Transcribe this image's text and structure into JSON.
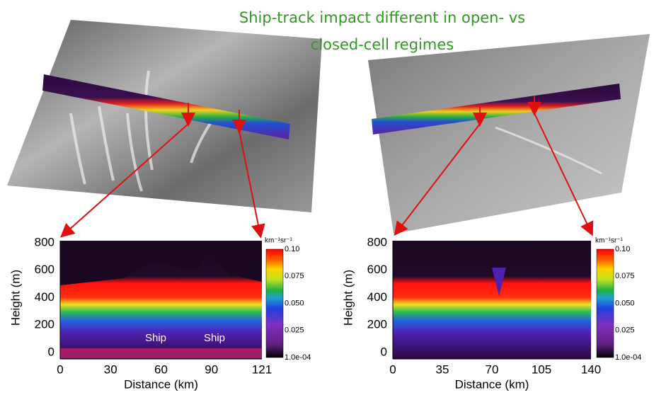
{
  "title": "Ship-track impact different in open- vs closed-cell regimes",
  "panels": [
    {
      "y_label": "Height (m)",
      "x_label": "Distance (km)",
      "yticks": [
        "0",
        "200",
        "400",
        "600",
        "800"
      ],
      "xticks": [
        "0",
        "30",
        "60",
        "90",
        "121"
      ],
      "colorbar": {
        "unit": "km⁻¹sr⁻¹",
        "ticks": [
          "1.0e-04",
          "0.025",
          "0.050",
          "0.075",
          "0.10"
        ]
      },
      "annotations": [
        "Ship",
        "Ship"
      ]
    },
    {
      "y_label": "Height (m)",
      "x_label": "Distance (km)",
      "yticks": [
        "0",
        "200",
        "400",
        "600",
        "800"
      ],
      "xticks": [
        "0",
        "35",
        "70",
        "105",
        "140"
      ],
      "colorbar": {
        "unit": "km⁻¹sr⁻¹",
        "ticks": [
          "1.0e-04",
          "0.025",
          "0.050",
          "0.075",
          "0.10"
        ]
      }
    }
  ]
}
